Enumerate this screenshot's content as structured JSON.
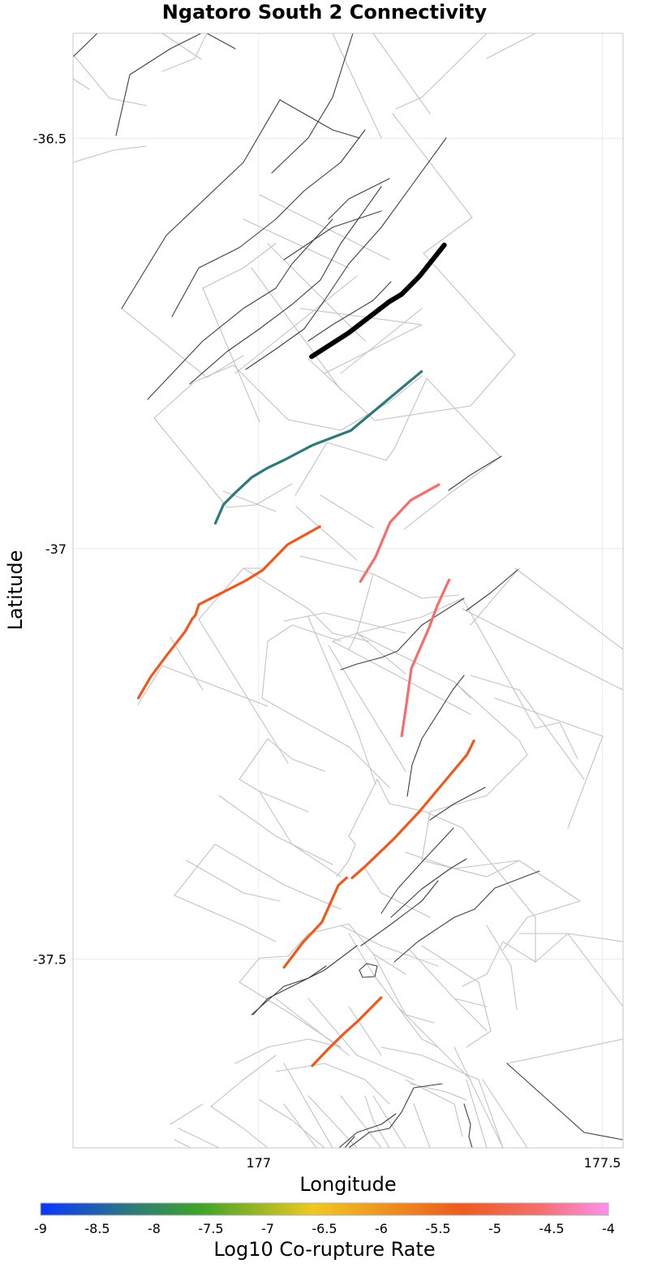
{
  "chart_data": {
    "type": "map",
    "title": "Ngatoro South 2 Connectivity",
    "xlabel": "Longitude",
    "ylabel": "Latitude",
    "xlim": [
      176.73,
      177.53
    ],
    "ylim": [
      -37.73,
      -36.372
    ],
    "x_ticks": [
      {
        "value": 177,
        "label": "177"
      },
      {
        "value": 177.5,
        "label": "177.5"
      }
    ],
    "y_ticks": [
      {
        "value": -36.5,
        "label": "-36.5"
      },
      {
        "value": -37,
        "label": "-37"
      },
      {
        "value": -37.5,
        "label": "-37.5"
      }
    ],
    "grid": true,
    "colorbar": {
      "label": "Log10 Co-rupture Rate",
      "range": [
        -9,
        -4
      ],
      "ticks": [
        "-9",
        "-8.5",
        "-8",
        "-7.5",
        "-7",
        "-6.5",
        "-6",
        "-5.5",
        "-5",
        "-4.5",
        "-4"
      ],
      "stops": [
        {
          "value": -9,
          "color": "#0a36ff"
        },
        {
          "value": -8.2,
          "color": "#2e7a7a"
        },
        {
          "value": -7.6,
          "color": "#3ea32a"
        },
        {
          "value": -6.6,
          "color": "#f0c820"
        },
        {
          "value": -5.3,
          "color": "#ee5a1e"
        },
        {
          "value": -4.6,
          "color": "#f46e6e"
        },
        {
          "value": -4,
          "color": "#ff90ee"
        }
      ]
    },
    "source_fault": {
      "name": "Ngatoro South 2",
      "color": "#000000",
      "trace": [
        [
          177.077,
          -36.766
        ],
        [
          177.131,
          -36.737
        ],
        [
          177.19,
          -36.699
        ],
        [
          177.208,
          -36.69
        ],
        [
          177.234,
          -36.668
        ],
        [
          177.27,
          -36.63
        ]
      ]
    },
    "colored_faults": [
      {
        "log10_rate": -8.2,
        "color": "#2e7a7a",
        "trace": [
          [
            176.937,
            -36.969
          ],
          [
            176.949,
            -36.946
          ],
          [
            176.967,
            -36.931
          ],
          [
            176.99,
            -36.913
          ],
          [
            177.012,
            -36.902
          ],
          [
            177.037,
            -36.892
          ],
          [
            177.078,
            -36.874
          ],
          [
            177.134,
            -36.856
          ],
          [
            177.237,
            -36.784
          ]
        ]
      },
      {
        "log10_rate": -4.6,
        "color": "#f46e6e",
        "trace": [
          [
            177.148,
            -37.04
          ],
          [
            177.17,
            -37.01
          ],
          [
            177.191,
            -36.968
          ],
          [
            177.221,
            -36.941
          ],
          [
            177.262,
            -36.922
          ]
        ]
      },
      {
        "log10_rate": -5.2,
        "color": "#ee5a1e",
        "trace": [
          [
            176.825,
            -37.182
          ],
          [
            176.843,
            -37.156
          ],
          [
            176.868,
            -37.128
          ],
          [
            176.893,
            -37.101
          ],
          [
            176.903,
            -37.086
          ],
          [
            176.908,
            -37.081
          ],
          [
            176.913,
            -37.068
          ],
          [
            176.96,
            -37.048
          ],
          [
            176.981,
            -37.039
          ],
          [
            177.006,
            -37.026
          ],
          [
            177.042,
            -36.995
          ],
          [
            177.089,
            -36.973
          ]
        ]
      },
      {
        "log10_rate": -4.6,
        "color": "#f46e6e",
        "trace": [
          [
            177.208,
            -37.228
          ],
          [
            177.214,
            -37.195
          ],
          [
            177.222,
            -37.146
          ],
          [
            177.247,
            -37.098
          ],
          [
            177.26,
            -37.069
          ],
          [
            177.277,
            -37.038
          ]
        ]
      },
      {
        "log10_rate": -5.2,
        "color": "#ee5a1e",
        "trace": [
          [
            177.136,
            -37.401
          ],
          [
            177.155,
            -37.387
          ],
          [
            177.196,
            -37.354
          ],
          [
            177.234,
            -37.32
          ],
          [
            177.278,
            -37.276
          ],
          [
            177.303,
            -37.251
          ],
          [
            177.313,
            -37.234
          ]
        ]
      },
      {
        "log10_rate": -5.2,
        "color": "#ee5a1e",
        "trace": [
          [
            177.037,
            -37.51
          ],
          [
            177.064,
            -37.48
          ],
          [
            177.092,
            -37.455
          ],
          [
            177.116,
            -37.41
          ],
          [
            177.128,
            -37.401
          ]
        ]
      },
      {
        "log10_rate": -5.2,
        "color": "#ee5a1e",
        "trace": [
          [
            177.078,
            -37.63
          ],
          [
            177.103,
            -37.608
          ],
          [
            177.125,
            -37.59
          ],
          [
            177.145,
            -37.575
          ],
          [
            177.178,
            -37.547
          ]
        ]
      }
    ]
  }
}
